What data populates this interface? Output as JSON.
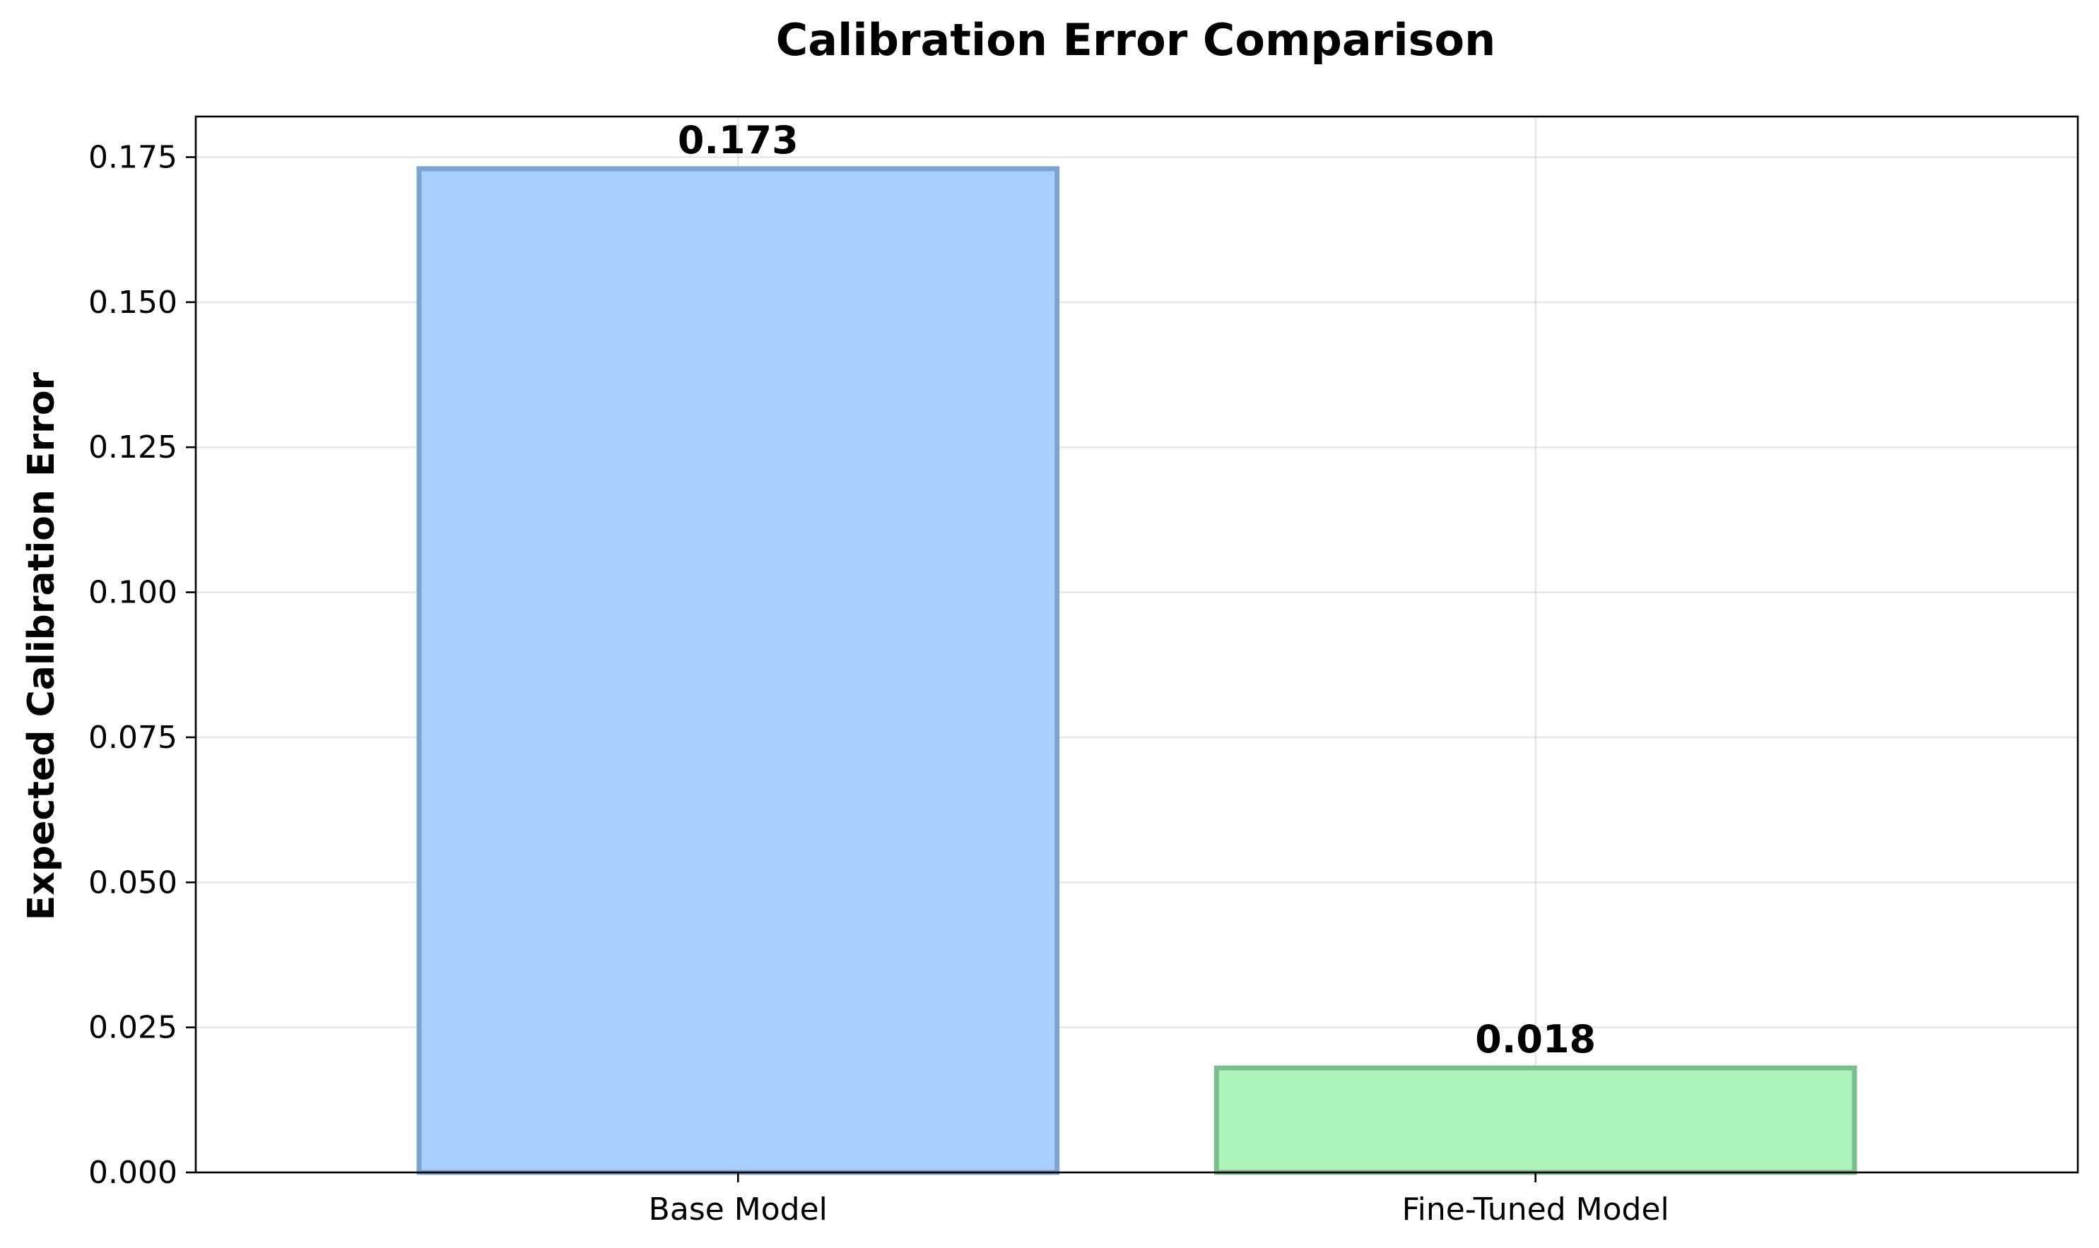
{
  "chart_data": {
    "type": "bar",
    "title": "Calibration Error Comparison",
    "xlabel": "",
    "ylabel": "Expected Calibration Error",
    "categories": [
      "Base Model",
      "Fine-Tuned Model"
    ],
    "values": [
      0.173,
      0.018
    ],
    "value_labels": [
      "0.173",
      "0.018"
    ],
    "ylim": [
      0,
      0.182
    ],
    "yticks": [
      0.0,
      0.025,
      0.05,
      0.075,
      0.1,
      0.125,
      0.15,
      0.175
    ],
    "ytick_labels": [
      "0.000",
      "0.025",
      "0.050",
      "0.075",
      "0.100",
      "0.125",
      "0.150",
      "0.175"
    ],
    "bar_colors": [
      "#a8cffd",
      "#adf3bb"
    ],
    "bar_edge_colors": [
      "#7aa3cf",
      "#7cbd8f"
    ],
    "grid": true,
    "legend": "none"
  }
}
